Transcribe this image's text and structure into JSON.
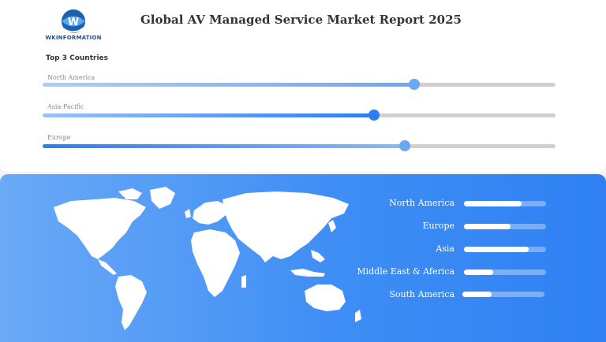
{
  "header": {
    "logo_text": "WKINFORMATION",
    "title": "Global AV Managed Service Market Report 2025"
  },
  "top_countries": {
    "heading": "Top 3 Countries",
    "items": [
      {
        "label": "North America",
        "level": 0.725
      },
      {
        "label": "Asia-Pacific",
        "level": 0.646
      },
      {
        "label": "Europe",
        "level": 0.706
      }
    ]
  },
  "regions": {
    "items": [
      {
        "label": "North America",
        "level": 0.7
      },
      {
        "label": "Europe",
        "level": 0.57
      },
      {
        "label": "Asia",
        "level": 0.79
      },
      {
        "label": "Middle East & Aferica",
        "level": 0.36
      },
      {
        "label": "South America",
        "level": 0.36
      }
    ]
  },
  "colors": {
    "accent": "#2f80f3",
    "accent_light": "#6aaaf6",
    "track": "#d0d0d0"
  },
  "icons": [
    "globe-logo-icon",
    "world-map"
  ]
}
